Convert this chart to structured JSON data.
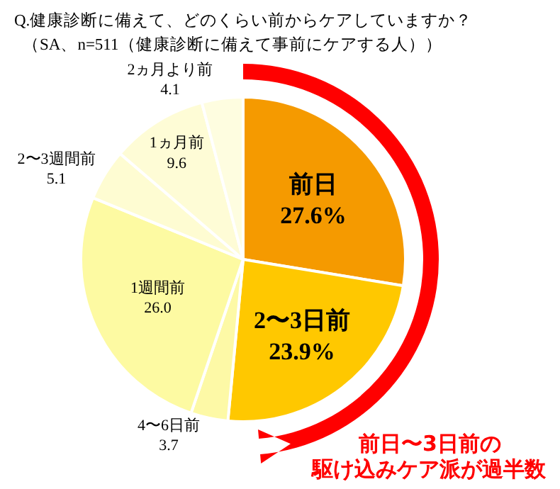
{
  "chart_data": {
    "type": "pie",
    "title": "Q.健康診断に備えて、どのくらい前からケアしていますか？",
    "subtitle": "（SA、n=511（健康診断に備えて事前にケアする人））",
    "categories": [
      "前日",
      "2〜3日前",
      "4〜6日前",
      "1週間前",
      "2〜3週間前",
      "1ヵ月前",
      "2ヵ月より前"
    ],
    "values": [
      27.6,
      23.9,
      3.7,
      26.0,
      5.1,
      9.6,
      4.1
    ],
    "value_labels": [
      "27.6%",
      "23.9%",
      "3.7",
      "26.0",
      "5.1",
      "9.6",
      "4.1"
    ],
    "colors": [
      "#f59a00",
      "#ffc800",
      "#fdf9a6",
      "#fdfaa2",
      "#fefcd2",
      "#fefcd6",
      "#fefde0"
    ],
    "annotations": [
      "前日〜3日前の",
      "駆け込みケア派が過半数"
    ],
    "legend": false
  }
}
